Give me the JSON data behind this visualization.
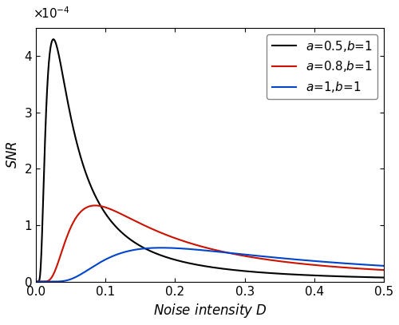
{
  "title": "",
  "xlabel": "Noise intensity D",
  "ylabel": "SNR",
  "xlim": [
    0.0,
    0.5
  ],
  "ylim": [
    0.0,
    0.00045
  ],
  "yticks": [
    0,
    0.0001,
    0.0002,
    0.0003,
    0.0004
  ],
  "ytick_labels": [
    "0",
    "1",
    "2",
    "3",
    "4"
  ],
  "xticks": [
    0.0,
    0.1,
    0.2,
    0.3,
    0.4,
    0.5
  ],
  "lines": [
    {
      "a": 0.5,
      "b": 1.0,
      "color": "#000000",
      "label": "a=0.5,b=1",
      "lw": 1.5,
      "peak_height": 0.00043,
      "peak_D": 0.025
    },
    {
      "a": 0.8,
      "b": 1.0,
      "color": "#cc1100",
      "label": "a=0.8,b=1",
      "lw": 1.5,
      "peak_height": 0.000135,
      "peak_D": 0.085
    },
    {
      "a": 1.0,
      "b": 1.0,
      "color": "#0044cc",
      "label": "a=1,b=1",
      "lw": 1.5,
      "peak_height": 6e-05,
      "peak_D": 0.18
    }
  ],
  "legend_loc": "upper right",
  "background_color": "#ffffff",
  "figsize": [
    5.0,
    4.07
  ],
  "dpi": 100
}
